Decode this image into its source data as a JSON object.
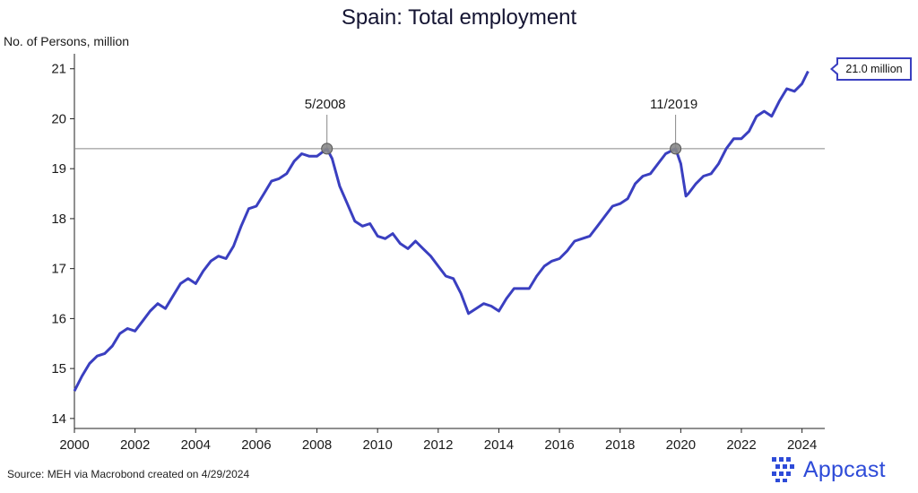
{
  "header": {
    "title": "Spain: Total employment"
  },
  "footer": {
    "source": "Source: MEH via Macrobond created on 4/29/2024",
    "brand": "Appcast"
  },
  "colors": {
    "line": "#3a3fc0",
    "reference": "#888888",
    "marker": "#888888",
    "brand": "#2e4bd8"
  },
  "chart_data": {
    "type": "line",
    "title": "Spain: Total employment",
    "xlabel": "",
    "ylabel": "No. of Persons, million",
    "xlim": [
      2000,
      2024.75
    ],
    "ylim": [
      13.8,
      21.3
    ],
    "x_ticks": [
      2000,
      2002,
      2004,
      2006,
      2008,
      2010,
      2012,
      2014,
      2016,
      2018,
      2020,
      2022,
      2024
    ],
    "x_tick_labels": [
      "2000",
      "2002",
      "2004",
      "2006",
      "2008",
      "2010",
      "2012",
      "2014",
      "2016",
      "2018",
      "2020",
      "2022",
      "2024"
    ],
    "y_ticks": [
      14,
      15,
      16,
      17,
      18,
      19,
      20,
      21
    ],
    "y_tick_labels": [
      "14",
      "15",
      "16",
      "17",
      "18",
      "19",
      "20",
      "21"
    ],
    "grid": false,
    "reference_line": {
      "y": 19.4
    },
    "annotations": [
      {
        "label": "5/2008",
        "x": 2008.33,
        "y": 19.4
      },
      {
        "label": "11/2019",
        "x": 2019.83,
        "y": 19.4
      }
    ],
    "callout": {
      "label": "21.0 million",
      "y": 20.95
    },
    "series": [
      {
        "name": "Total employment",
        "x": [
          2000.0,
          2000.25,
          2000.5,
          2000.75,
          2001.0,
          2001.25,
          2001.5,
          2001.75,
          2002.0,
          2002.25,
          2002.5,
          2002.75,
          2003.0,
          2003.25,
          2003.5,
          2003.75,
          2004.0,
          2004.25,
          2004.5,
          2004.75,
          2005.0,
          2005.25,
          2005.5,
          2005.75,
          2006.0,
          2006.25,
          2006.5,
          2006.75,
          2007.0,
          2007.25,
          2007.5,
          2007.75,
          2008.0,
          2008.33,
          2008.5,
          2008.75,
          2009.0,
          2009.25,
          2009.5,
          2009.75,
          2010.0,
          2010.25,
          2010.5,
          2010.75,
          2011.0,
          2011.25,
          2011.5,
          2011.75,
          2012.0,
          2012.25,
          2012.5,
          2012.75,
          2013.0,
          2013.25,
          2013.5,
          2013.75,
          2014.0,
          2014.25,
          2014.5,
          2014.75,
          2015.0,
          2015.25,
          2015.5,
          2015.75,
          2016.0,
          2016.25,
          2016.5,
          2016.75,
          2017.0,
          2017.25,
          2017.5,
          2017.75,
          2018.0,
          2018.25,
          2018.5,
          2018.75,
          2019.0,
          2019.25,
          2019.5,
          2019.83,
          2020.0,
          2020.17,
          2020.25,
          2020.5,
          2020.75,
          2021.0,
          2021.25,
          2021.5,
          2021.75,
          2022.0,
          2022.25,
          2022.5,
          2022.75,
          2023.0,
          2023.25,
          2023.5,
          2023.75,
          2024.0,
          2024.2
        ],
        "values": [
          14.55,
          14.85,
          15.1,
          15.25,
          15.3,
          15.45,
          15.7,
          15.8,
          15.75,
          15.95,
          16.15,
          16.3,
          16.2,
          16.45,
          16.7,
          16.8,
          16.7,
          16.95,
          17.15,
          17.25,
          17.2,
          17.45,
          17.85,
          18.2,
          18.25,
          18.5,
          18.75,
          18.8,
          18.9,
          19.15,
          19.3,
          19.25,
          19.25,
          19.4,
          19.2,
          18.65,
          18.3,
          17.95,
          17.85,
          17.9,
          17.65,
          17.6,
          17.7,
          17.5,
          17.4,
          17.55,
          17.4,
          17.25,
          17.05,
          16.85,
          16.8,
          16.5,
          16.1,
          16.2,
          16.3,
          16.25,
          16.15,
          16.4,
          16.6,
          16.6,
          16.6,
          16.85,
          17.05,
          17.15,
          17.2,
          17.35,
          17.55,
          17.6,
          17.65,
          17.85,
          18.05,
          18.25,
          18.3,
          18.4,
          18.7,
          18.85,
          18.9,
          19.1,
          19.3,
          19.4,
          19.1,
          18.45,
          18.5,
          18.7,
          18.85,
          18.9,
          19.1,
          19.4,
          19.6,
          19.6,
          19.75,
          20.05,
          20.15,
          20.05,
          20.35,
          20.6,
          20.55,
          20.7,
          20.95
        ]
      }
    ]
  }
}
